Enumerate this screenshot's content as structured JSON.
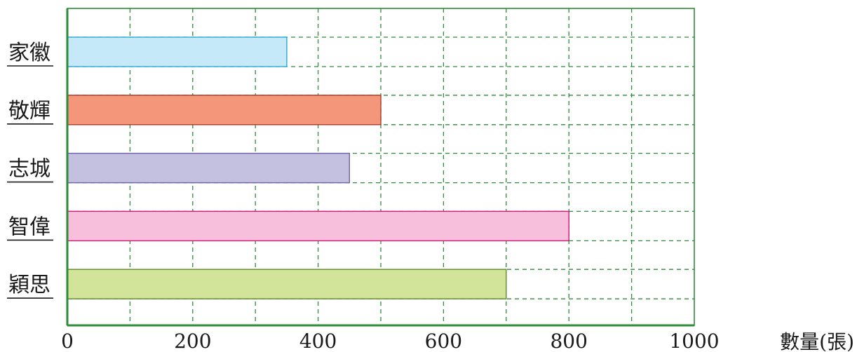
{
  "chart_data": {
    "type": "bar",
    "orientation": "horizontal",
    "categories": [
      "家徽",
      "敬輝",
      "志城",
      "智偉",
      "穎思"
    ],
    "values": [
      350,
      500,
      450,
      800,
      700
    ],
    "xlabel": "數量(張)",
    "ylabel": "",
    "xlim": [
      0,
      1000
    ],
    "x_ticks": [
      0,
      200,
      400,
      600,
      800,
      1000
    ],
    "x_tick_labels": [
      "0",
      "200",
      "400",
      "600",
      "800",
      "1000"
    ],
    "grid": true,
    "grid_style": "dashed",
    "frame_color": "#2e8b3a",
    "grid_color": "#2e8b3a",
    "bar_fill_colors": [
      "#c5e9f8",
      "#f4967a",
      "#c4c0e0",
      "#f7bfdc",
      "#d2e39a"
    ],
    "bar_edge_colors": [
      "#2aa9d8",
      "#b13a28",
      "#6f64a8",
      "#d01a7a",
      "#5e8a2a"
    ],
    "category_label_underline": true
  }
}
